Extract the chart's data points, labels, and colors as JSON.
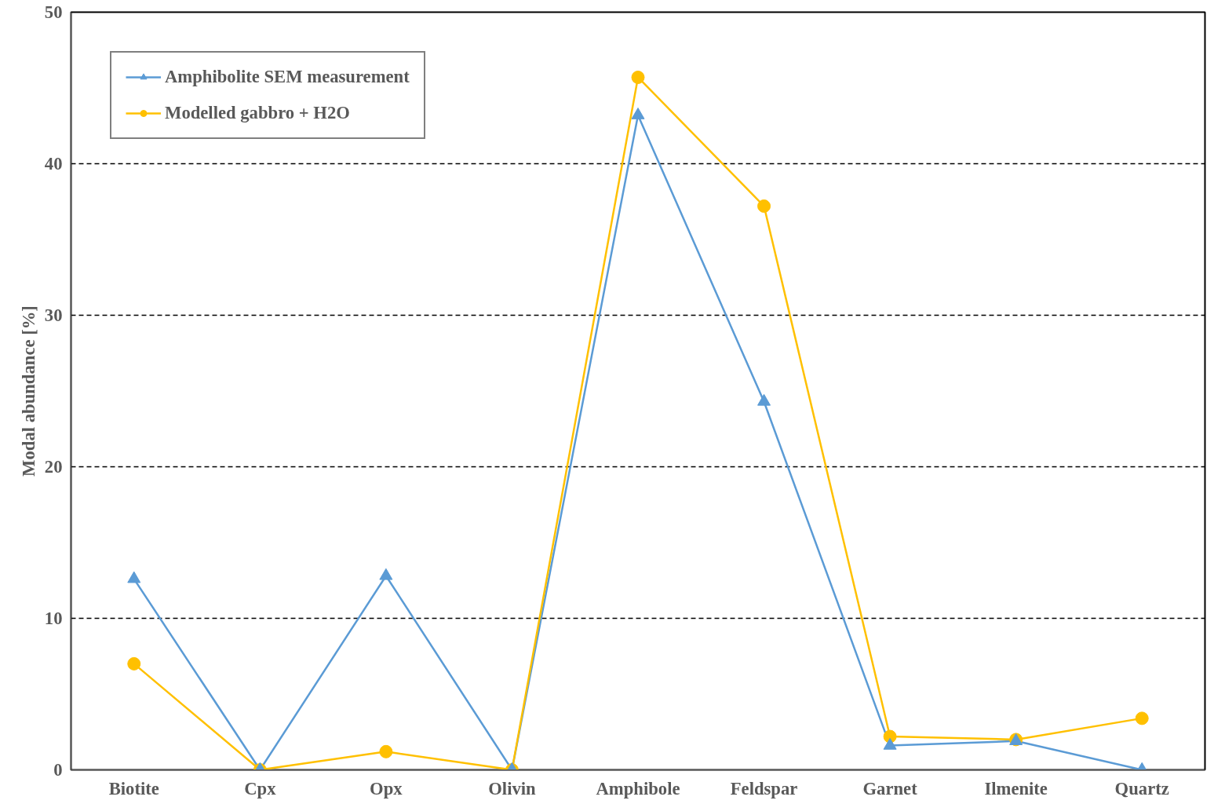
{
  "chart_data": {
    "type": "line",
    "ylabel": "Modal abundance [%]",
    "categories": [
      "Biotite",
      "Cpx",
      "Opx",
      "Olivin",
      "Amphibole",
      "Feldspar",
      "Garnet",
      "Ilmenite",
      "Quartz"
    ],
    "series": [
      {
        "name": "Amphibolite SEM measurement",
        "color": "#5b9bd5",
        "marker": "triangle",
        "values": [
          12.6,
          0,
          12.8,
          0,
          43.2,
          24.3,
          1.6,
          1.9,
          0
        ]
      },
      {
        "name": "Modelled gabbro + H2O",
        "color": "#ffc000",
        "marker": "circle",
        "values": [
          7.0,
          0,
          1.2,
          0,
          45.7,
          37.2,
          2.2,
          2.0,
          3.4
        ]
      }
    ],
    "ylim": [
      0,
      50
    ],
    "yticks": [
      0,
      10,
      20,
      30,
      40,
      50
    ],
    "grid": "y",
    "legend": "top left",
    "line_style": "solid"
  }
}
